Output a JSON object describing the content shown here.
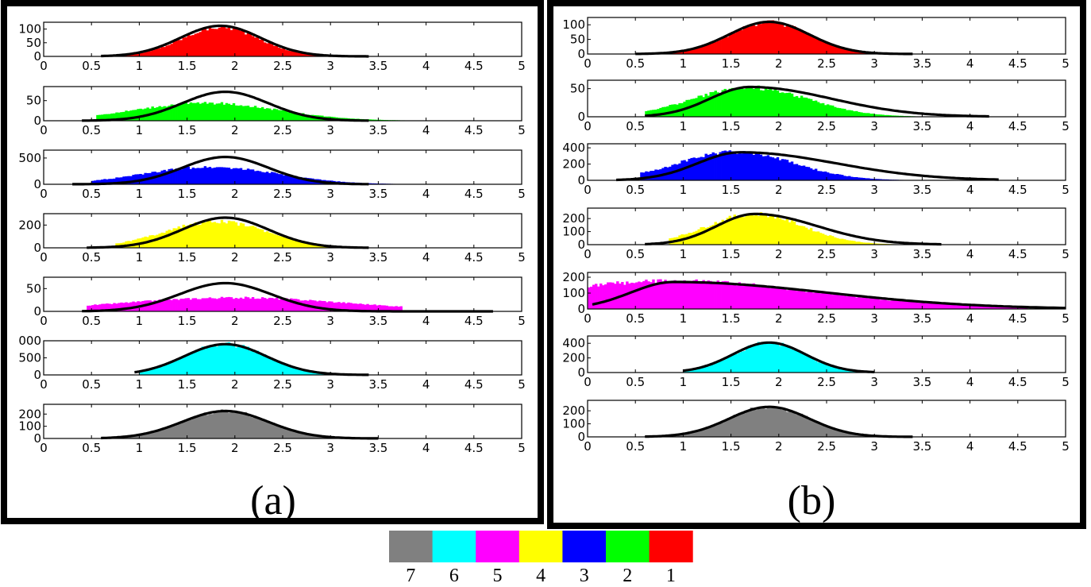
{
  "figure": {
    "panel_labels": [
      "(a)",
      "(b)"
    ],
    "legend": {
      "items": [
        {
          "label": "7",
          "color": "#808080"
        },
        {
          "label": "6",
          "color": "#00ffff"
        },
        {
          "label": "5",
          "color": "#ff00ff"
        },
        {
          "label": "4",
          "color": "#ffff00"
        },
        {
          "label": "3",
          "color": "#0000ff"
        },
        {
          "label": "2",
          "color": "#00ff00"
        },
        {
          "label": "1",
          "color": "#ff0000"
        }
      ]
    }
  },
  "chart_data": [
    {
      "panel": "(a)",
      "type": "bar",
      "title": "",
      "xlim": [
        0,
        5
      ],
      "x_ticks": [
        "0",
        "0.5",
        "1",
        "1.5",
        "2",
        "2.5",
        "3",
        "3.5",
        "4",
        "4.5",
        "5"
      ],
      "subplots": [
        {
          "class": "1",
          "color": "#ff0000",
          "ylim": [
            0,
            125
          ],
          "y_ticks": [
            "0",
            "50",
            "100"
          ],
          "histogram": {
            "range": [
              0.75,
              3.4
            ],
            "center": 1.85,
            "sd": 0.4,
            "peak": 108
          },
          "fit_curve": {
            "type": "gaussian",
            "mean": 1.85,
            "sd": 0.42,
            "peak": 112,
            "x_range": [
              0.6,
              3.4
            ]
          }
        },
        {
          "class": "2",
          "color": "#00ff00",
          "ylim": [
            0,
            85
          ],
          "y_ticks": [
            "0",
            "50"
          ],
          "histogram": {
            "range": [
              0.55,
              4.0
            ],
            "center": 1.7,
            "sd": 0.75,
            "peak": 44
          },
          "fit_curve": {
            "type": "gaussian",
            "mean": 1.9,
            "sd": 0.45,
            "peak": 72,
            "x_range": [
              0.4,
              3.4
            ]
          }
        },
        {
          "class": "3",
          "color": "#0000ff",
          "ylim": [
            0,
            650
          ],
          "y_ticks": [
            "0",
            "500"
          ],
          "histogram": {
            "range": [
              0.5,
              3.7
            ],
            "center": 1.75,
            "sd": 0.7,
            "peak": 330
          },
          "fit_curve": {
            "type": "gaussian",
            "mean": 1.9,
            "sd": 0.45,
            "peak": 520,
            "x_range": [
              0.3,
              3.4
            ]
          }
        },
        {
          "class": "4",
          "color": "#ffff00",
          "ylim": [
            0,
            300
          ],
          "y_ticks": [
            "0",
            "200"
          ],
          "histogram": {
            "range": [
              0.75,
              3.7
            ],
            "center": 1.8,
            "sd": 0.55,
            "peak": 230
          },
          "fit_curve": {
            "type": "gaussian",
            "mean": 1.9,
            "sd": 0.45,
            "peak": 265,
            "x_range": [
              0.45,
              3.4
            ]
          }
        },
        {
          "class": "5",
          "color": "#ff00ff",
          "ylim": [
            0,
            75
          ],
          "y_ticks": [
            "0",
            "50"
          ],
          "histogram": {
            "range": [
              0.45,
              3.75
            ],
            "center": 2.0,
            "sd": 1.2,
            "peak": 30
          },
          "fit_curve": {
            "type": "gaussian",
            "mean": 1.9,
            "sd": 0.48,
            "peak": 62,
            "x_range": [
              0.4,
              4.7
            ]
          }
        },
        {
          "class": "6",
          "color": "#00ffff",
          "ylim": [
            0,
            1000
          ],
          "y_ticks": [
            "0",
            "500",
            "000"
          ],
          "histogram": {
            "range": [
              1.0,
              3.4
            ],
            "center": 1.9,
            "sd": 0.43,
            "peak": 900
          },
          "fit_curve": {
            "type": "gaussian",
            "mean": 1.9,
            "sd": 0.43,
            "peak": 900,
            "x_range": [
              0.95,
              3.4
            ]
          }
        },
        {
          "class": "7",
          "color": "#808080",
          "ylim": [
            0,
            280
          ],
          "y_ticks": [
            "0",
            "100",
            "200"
          ],
          "histogram": {
            "range": [
              0.6,
              3.5
            ],
            "center": 1.9,
            "sd": 0.45,
            "peak": 225
          },
          "fit_curve": {
            "type": "gaussian",
            "mean": 1.9,
            "sd": 0.45,
            "peak": 225,
            "x_range": [
              0.6,
              3.5
            ]
          }
        }
      ]
    },
    {
      "panel": "(b)",
      "type": "bar",
      "title": "",
      "xlim": [
        0,
        5
      ],
      "x_ticks": [
        "0",
        "0.5",
        "1",
        "1.5",
        "2",
        "2.5",
        "3",
        "3.5",
        "4",
        "4.5",
        "5"
      ],
      "subplots": [
        {
          "class": "1",
          "color": "#ff0000",
          "ylim": [
            0,
            125
          ],
          "y_ticks": [
            "0",
            "50",
            "100"
          ],
          "histogram": {
            "range": [
              0.8,
              3.1
            ],
            "center": 1.9,
            "sd": 0.42,
            "peak": 108
          },
          "fit_curve": {
            "type": "gaussian",
            "mean": 1.9,
            "sd": 0.42,
            "peak": 110,
            "x_range": [
              0.5,
              3.4
            ]
          }
        },
        {
          "class": "2",
          "color": "#00ff00",
          "ylim": [
            0,
            65
          ],
          "y_ticks": [
            "0",
            "50"
          ],
          "histogram": {
            "range": [
              0.6,
              3.5
            ],
            "center": 1.7,
            "sd": 0.6,
            "peak": 52
          },
          "fit_curve": {
            "type": "skewed",
            "mode": 1.7,
            "sd_left": 0.42,
            "sd_right": 0.85,
            "peak": 53,
            "x_range": [
              0.6,
              4.2
            ]
          }
        },
        {
          "class": "3",
          "color": "#0000ff",
          "ylim": [
            0,
            450
          ],
          "y_ticks": [
            "0",
            "200",
            "400"
          ],
          "histogram": {
            "range": [
              0.55,
              3.6
            ],
            "center": 1.55,
            "sd": 0.6,
            "peak": 350
          },
          "fit_curve": {
            "type": "skewed",
            "mode": 1.6,
            "sd_left": 0.45,
            "sd_right": 1.0,
            "peak": 345,
            "x_range": [
              0.3,
              4.3
            ]
          }
        },
        {
          "class": "4",
          "color": "#ffff00",
          "ylim": [
            0,
            280
          ],
          "y_ticks": [
            "0",
            "100",
            "200"
          ],
          "histogram": {
            "range": [
              0.85,
              3.3
            ],
            "center": 1.75,
            "sd": 0.5,
            "peak": 235
          },
          "fit_curve": {
            "type": "skewed",
            "mode": 1.75,
            "sd_left": 0.4,
            "sd_right": 0.65,
            "peak": 235,
            "x_range": [
              0.6,
              3.7
            ]
          }
        },
        {
          "class": "5",
          "color": "#ff00ff",
          "ylim": [
            0,
            230
          ],
          "y_ticks": [
            "0",
            "100",
            "200"
          ],
          "histogram": {
            "range": [
              0.0,
              4.6
            ],
            "center": 0.9,
            "sd": 1.5,
            "peak": 175
          },
          "fit_curve": {
            "type": "skewed",
            "mode": 0.9,
            "sd_left": 0.45,
            "sd_right": 1.6,
            "peak": 170,
            "x_range": [
              0.05,
              5.0
            ]
          }
        },
        {
          "class": "6",
          "color": "#00ffff",
          "ylim": [
            0,
            500
          ],
          "y_ticks": [
            "0",
            "200",
            "400"
          ],
          "histogram": {
            "range": [
              1.0,
              3.0
            ],
            "center": 1.9,
            "sd": 0.36,
            "peak": 410
          },
          "fit_curve": {
            "type": "gaussian",
            "mean": 1.9,
            "sd": 0.38,
            "peak": 410,
            "x_range": [
              1.0,
              3.0
            ]
          }
        },
        {
          "class": "7",
          "color": "#808080",
          "ylim": [
            0,
            280
          ],
          "y_ticks": [
            "0",
            "100",
            "200"
          ],
          "histogram": {
            "range": [
              0.65,
              3.05
            ],
            "center": 1.9,
            "sd": 0.42,
            "peak": 230
          },
          "fit_curve": {
            "type": "gaussian",
            "mean": 1.9,
            "sd": 0.42,
            "peak": 230,
            "x_range": [
              0.6,
              3.4
            ]
          }
        }
      ]
    }
  ]
}
